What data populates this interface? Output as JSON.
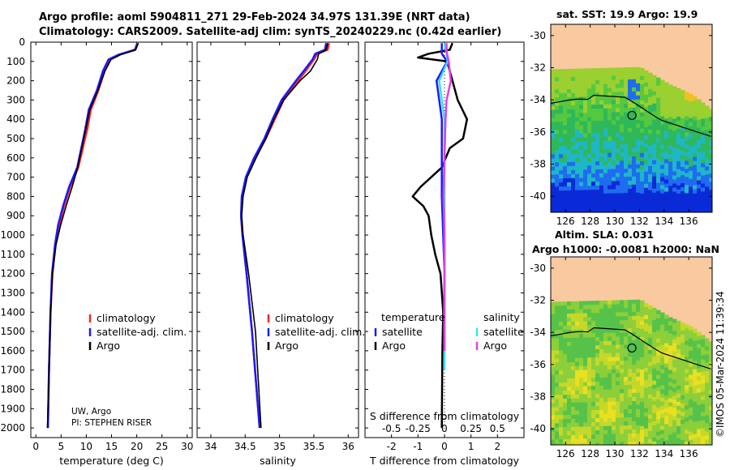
{
  "header": {
    "title_line1": "Argo profile: aoml 5904811_271 29-Feb-2024 34.97S 131.39E (NRT data)",
    "title_line2": "Climatology: CARS2009. Satellite-adj clim: synTS_20240229.nc (0.42d earlier)"
  },
  "colors": {
    "climatology": "#ff2020",
    "satellite_adj": "#1a1aff",
    "argo": "#000000",
    "sat_temp": "#1a1aff",
    "sat_sal": "#33e0ff",
    "argo_sal": "#e040e0",
    "land": "#f9c9a0"
  },
  "chart_data": [
    {
      "type": "line",
      "id": "temperature",
      "xlabel": "temperature (deg C)",
      "ylabel": "",
      "xlim": [
        -1,
        31
      ],
      "ylim": [
        2050,
        0
      ],
      "x_ticks": [
        "0",
        "5",
        "10",
        "15",
        "20",
        "25",
        "30"
      ],
      "y_ticks": [
        "0",
        "100",
        "200",
        "300",
        "400",
        "500",
        "600",
        "700",
        "800",
        "900",
        "1000",
        "1100",
        "1200",
        "1300",
        "1400",
        "1500",
        "1600",
        "1700",
        "1800",
        "1900",
        "2000"
      ],
      "legend": [
        "climatology",
        "satellite-adj. clim.",
        "Argo"
      ],
      "legend_position": "lower-right",
      "annotation": [
        "UW, Argo",
        "PI: STEPHEN RISER"
      ],
      "series": [
        {
          "name": "climatology",
          "pressure": [
            5,
            40,
            65,
            90,
            150,
            250,
            350,
            450,
            550,
            650,
            750,
            850,
            950,
            1050,
            1200,
            1400,
            1700,
            2000
          ],
          "values": [
            20.1,
            19.6,
            16.5,
            14.6,
            13.6,
            12.4,
            10.9,
            10.2,
            9.3,
            8.4,
            6.8,
            5.6,
            4.6,
            3.9,
            3.3,
            2.9,
            2.6,
            2.4
          ]
        },
        {
          "name": "satellite-adj. clim.",
          "pressure": [
            5,
            40,
            65,
            90,
            150,
            250,
            350,
            450,
            550,
            650,
            750,
            850,
            950,
            1050,
            1200,
            1400,
            1700,
            2000
          ],
          "values": [
            20.2,
            19.7,
            16.4,
            14.4,
            13.3,
            12.1,
            10.5,
            9.8,
            9.0,
            8.2,
            6.6,
            5.4,
            4.4,
            3.8,
            3.2,
            2.9,
            2.6,
            2.4
          ]
        },
        {
          "name": "Argo",
          "pressure": [
            5,
            40,
            65,
            90,
            150,
            250,
            350,
            450,
            550,
            650,
            750,
            850,
            950,
            1050,
            1200,
            1400,
            1700,
            2000
          ],
          "values": [
            20.3,
            19.8,
            16.8,
            14.9,
            13.7,
            12.3,
            10.7,
            9.9,
            9.1,
            8.3,
            7.2,
            6.0,
            4.9,
            4.0,
            3.3,
            2.9,
            2.6,
            2.3
          ]
        }
      ]
    },
    {
      "type": "line",
      "id": "salinity",
      "xlabel": "salinity",
      "ylabel": "",
      "xlim": [
        33.8,
        36.15
      ],
      "ylim": [
        2050,
        0
      ],
      "x_ticks": [
        "34",
        "34.5",
        "35",
        "35.5",
        "36"
      ],
      "legend": [
        "climatology",
        "satellite-adj. clim.",
        "Argo"
      ],
      "legend_position": "lower-right",
      "series": [
        {
          "name": "climatology",
          "pressure": [
            5,
            40,
            60,
            90,
            150,
            200,
            300,
            400,
            500,
            600,
            700,
            800,
            900,
            1000,
            1200,
            1500,
            2000
          ],
          "values": [
            35.72,
            35.7,
            35.55,
            35.5,
            35.38,
            35.27,
            35.06,
            34.93,
            34.8,
            34.65,
            34.52,
            34.46,
            34.44,
            34.46,
            34.52,
            34.6,
            34.71
          ]
        },
        {
          "name": "satellite-adj. clim.",
          "pressure": [
            5,
            40,
            60,
            90,
            150,
            200,
            300,
            400,
            500,
            600,
            700,
            800,
            900,
            1000,
            1200,
            1500,
            2000
          ],
          "values": [
            35.68,
            35.66,
            35.52,
            35.48,
            35.35,
            35.24,
            35.03,
            34.9,
            34.78,
            34.63,
            34.51,
            34.45,
            34.44,
            34.46,
            34.52,
            34.6,
            34.71
          ]
        },
        {
          "name": "Argo",
          "pressure": [
            5,
            40,
            60,
            90,
            150,
            200,
            300,
            400,
            500,
            600,
            700,
            800,
            900,
            1000,
            1200,
            1500,
            2000
          ],
          "values": [
            35.7,
            35.68,
            35.57,
            35.55,
            35.45,
            35.3,
            35.06,
            34.92,
            34.8,
            34.66,
            34.53,
            34.47,
            34.45,
            34.47,
            34.55,
            34.65,
            34.73
          ]
        }
      ]
    },
    {
      "type": "line",
      "id": "difference",
      "xlabel": "T difference from climatology",
      "top_label": "S difference from climatology",
      "ylabel": "",
      "xlim": [
        -3.0,
        3.0
      ],
      "ylim": [
        2050,
        0
      ],
      "x_ticks": [
        "-2",
        "-1",
        "0",
        "1",
        "2"
      ],
      "s_ticks": [
        "-0.5",
        "-0.25",
        "0",
        "0.25",
        "0.5"
      ],
      "legend_temperature_title": "temperature",
      "legend_salinity_title": "salinity",
      "legend_temperature": [
        "satellite",
        "Argo"
      ],
      "legend_salinity": [
        "satellite",
        "Argo"
      ],
      "series": [
        {
          "name": "satellite temperature",
          "pressure": [
            5,
            60,
            100,
            200,
            300,
            400,
            600,
            800,
            1000,
            1200,
            1400,
            1600
          ],
          "values": [
            -0.1,
            -0.1,
            0.1,
            -0.3,
            -0.2,
            -0.1,
            -0.1,
            -0.1,
            -0.05,
            0.0,
            -0.02,
            0.0
          ]
        },
        {
          "name": "Argo temperature",
          "pressure": [
            5,
            40,
            60,
            80,
            100,
            150,
            200,
            300,
            400,
            500,
            550,
            650,
            700,
            750,
            800,
            850,
            900,
            1000,
            1100,
            1200,
            1400,
            1600,
            2000
          ],
          "values": [
            0.3,
            0.2,
            -0.6,
            -1.0,
            0.1,
            0.2,
            0.3,
            0.5,
            0.85,
            0.7,
            0.2,
            -0.1,
            -0.5,
            -0.9,
            -1.2,
            -0.8,
            -0.6,
            -0.5,
            -0.35,
            -0.15,
            -0.05,
            -0.08,
            -0.1
          ]
        },
        {
          "name": "satellite salinity",
          "pressure": [
            5,
            60,
            100,
            200,
            400,
            800,
            1200,
            1500,
            1700
          ],
          "values": [
            0.0,
            0.02,
            0.03,
            -0.05,
            0.0,
            0.0,
            0.0,
            0.0,
            0.0
          ]
        },
        {
          "name": "Argo salinity",
          "pressure": [
            5,
            50,
            100,
            200,
            300,
            400,
            600,
            800,
            1000,
            1200,
            1400,
            1600
          ],
          "values": [
            0.02,
            0.02,
            0.04,
            0.06,
            0.02,
            0.01,
            0.0,
            -0.01,
            0.0,
            0.0,
            0.0,
            0.0
          ]
        }
      ]
    },
    {
      "type": "heatmap",
      "id": "sst_map",
      "title": "sat. SST: 19.9 Argo: 19.9",
      "x_ticks": [
        "126",
        "128",
        "130",
        "132",
        "134",
        "136"
      ],
      "y_ticks": [
        "-30",
        "-32",
        "-34",
        "-36",
        "-38",
        "-40"
      ],
      "xlim": [
        124.8,
        137.9
      ],
      "ylim": [
        -41.0,
        -29.3
      ],
      "marker": {
        "lon": 131.39,
        "lat": -34.97
      }
    },
    {
      "type": "heatmap",
      "id": "sla_map",
      "title_line1": "Altim. SLA: 0.031",
      "title_line2": "Argo h1000: -0.0081 h2000: NaN",
      "x_ticks": [
        "126",
        "128",
        "130",
        "132",
        "134",
        "136"
      ],
      "y_ticks": [
        "-30",
        "-32",
        "-34",
        "-36",
        "-38",
        "-40"
      ],
      "xlim": [
        124.8,
        137.9
      ],
      "ylim": [
        -41.0,
        -29.3
      ],
      "marker": {
        "lon": 131.39,
        "lat": -34.97
      }
    }
  ],
  "side_label": "©IMOS 05-Mar-2024 11:39:34"
}
